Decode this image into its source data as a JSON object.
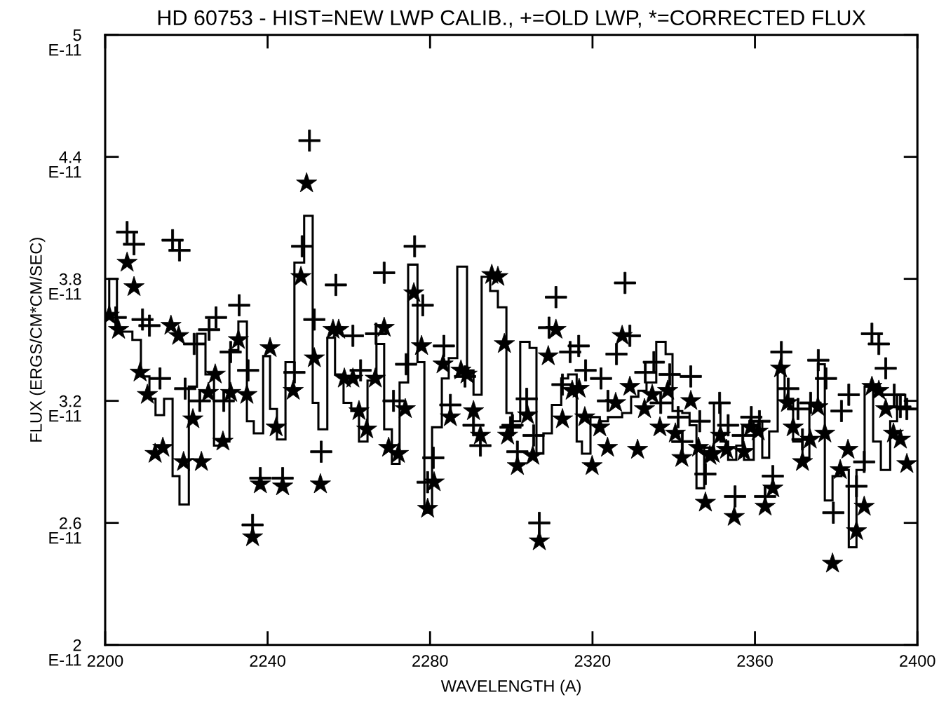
{
  "chart_data": {
    "type": "scatter",
    "title": "HD 60753 - HIST=NEW LWP CALIB., +=OLD LWP, *=CORRECTED FLUX",
    "xlabel": "WAVELENGTH (A)",
    "ylabel": "FLUX (ERGS/CM*CM/SEC)",
    "xlim": [
      2200,
      2400
    ],
    "xticks": [
      2200,
      2240,
      2280,
      2320,
      2360,
      2400
    ],
    "ylim": [
      2,
      5
    ],
    "yticks": [
      2,
      2.6,
      3.2,
      3.8,
      4.4,
      5
    ],
    "annotations": [
      "E-11",
      "E-11",
      "E-11",
      "E-11",
      "E-11",
      "E-11"
    ],
    "grid": false,
    "legend": false,
    "series": [
      {
        "type": "histogram",
        "color": "#000000",
        "bins": [
          2200.0,
          2201.0,
          2202.9,
          2206.7,
          2208.8,
          2210.9,
          2212.4,
          2214.5,
          2216.6,
          2218.3,
          2220.6,
          2222.6,
          2224.7,
          2226.8,
          2229.0,
          2230.6,
          2232.8,
          2234.9,
          2236.6,
          2238.9,
          2240.6,
          2242.3,
          2244.4,
          2246.6,
          2249.0,
          2251.1,
          2252.5,
          2254.7,
          2256.6,
          2258.7,
          2260.6,
          2262.5,
          2264.6,
          2266.8,
          2268.7,
          2270.6,
          2272.5,
          2274.6,
          2276.9,
          2278.6,
          2280.5,
          2282.9,
          2284.6,
          2286.7,
          2289.1,
          2290.7,
          2292.7,
          2294.8,
          2296.7,
          2298.8,
          2300.2,
          2302.2,
          2304.5,
          2306.2,
          2307.9,
          2310.0,
          2312.3,
          2314.0,
          2316.1,
          2317.4,
          2319.5,
          2321.8,
          2323.8,
          2327.3,
          2329.5,
          2331.3,
          2333.3,
          2335.7,
          2338.0,
          2339.7,
          2342.1,
          2343.9,
          2345.6,
          2347.5,
          2349.9,
          2351.5,
          2353.4,
          2355.4,
          2357.3,
          2359.7,
          2361.8,
          2363.5,
          2365.6,
          2367.3,
          2369.4,
          2371.7,
          2373.4,
          2375.5,
          2377.2,
          2379.1,
          2381.3,
          2383.1,
          2385.0,
          2387.0,
          2389.1,
          2391.0,
          2393.3,
          2395.0,
          2397.0,
          2399.1
        ],
        "values": [
          3.62,
          3.8,
          3.54,
          3.5,
          3.32,
          3.21,
          3.13,
          3.21,
          2.83,
          2.69,
          3.27,
          3.53,
          3.33,
          2.98,
          3.0,
          3.45,
          3.59,
          3.1,
          3.04,
          3.42,
          3.16,
          3.01,
          3.39,
          3.88,
          4.11,
          3.19,
          3.06,
          3.51,
          3.33,
          3.19,
          3.15,
          3.0,
          3.3,
          3.48,
          3.06,
          2.89,
          3.29,
          3.87,
          3.39,
          2.65,
          3.07,
          3.31,
          3.41,
          3.86,
          3.35,
          3.23,
          3.81,
          3.74,
          3.66,
          3.14,
          3.1,
          3.49,
          3.46,
          2.94,
          3.04,
          3.18,
          3.31,
          3.33,
          3.0,
          2.94,
          3.12,
          3.1,
          3.12,
          3.14,
          3.22,
          3.25,
          3.29,
          3.49,
          3.43,
          3.15,
          3.14,
          3.08,
          2.77,
          2.97,
          3.19,
          3.0,
          2.91,
          2.98,
          2.91,
          3.1,
          2.92,
          3.05,
          3.36,
          3.21,
          3.0,
          2.92,
          3.19,
          3.38,
          2.71,
          2.83,
          2.86,
          2.48,
          2.86,
          3.27,
          3.0,
          2.86,
          3.1,
          3.23,
          3.16
        ]
      },
      {
        "marker": "cross",
        "color": "#000000",
        "x": [
          2202.6,
          2205.4,
          2207.1,
          2209.2,
          2210.9,
          2213.5,
          2216.6,
          2218.3,
          2219.7,
          2221.9,
          2223.3,
          2225.6,
          2227.3,
          2229.2,
          2230.9,
          2233.0,
          2235.2,
          2236.3,
          2238.2,
          2243.7,
          2246.6,
          2248.5,
          2250.3,
          2251.5,
          2253.2,
          2256.8,
          2261.0,
          2262.9,
          2266.7,
          2268.7,
          2271.0,
          2274.1,
          2276.2,
          2278.2,
          2279.4,
          2280.8,
          2283.4,
          2285.0,
          2288.6,
          2290.7,
          2292.4,
          2299.8,
          2300.3,
          2301.5,
          2303.8,
          2305.5,
          2306.9,
          2309.3,
          2311.0,
          2312.6,
          2314.5,
          2316.6,
          2318.3,
          2322.1,
          2323.8,
          2325.9,
          2328.0,
          2329.2,
          2333.0,
          2335.1,
          2336.8,
          2339.0,
          2341.1,
          2342.1,
          2344.2,
          2346.4,
          2347.8,
          2351.3,
          2353.4,
          2355.1,
          2357.0,
          2359.1,
          2361.1,
          2362.5,
          2364.4,
          2366.5,
          2368.2,
          2370.6,
          2371.7,
          2373.7,
          2375.6,
          2377.5,
          2379.3,
          2381.3,
          2383.1,
          2385.0,
          2386.9,
          2388.8,
          2390.5,
          2392.2,
          2394.3,
          2395.8,
          2397.4
        ],
        "values": [
          3.61,
          4.03,
          3.97,
          3.6,
          3.57,
          3.31,
          3.99,
          3.94,
          3.26,
          3.48,
          3.2,
          3.55,
          3.61,
          3.2,
          3.44,
          3.67,
          3.35,
          2.59,
          2.82,
          2.82,
          3.34,
          3.96,
          4.48,
          3.6,
          2.95,
          3.77,
          3.52,
          3.35,
          3.53,
          3.83,
          3.2,
          3.38,
          3.96,
          3.67,
          2.8,
          2.92,
          3.47,
          3.18,
          3.32,
          3.08,
          2.98,
          3.07,
          3.08,
          2.95,
          3.21,
          3.03,
          2.6,
          3.56,
          3.71,
          3.28,
          3.44,
          3.47,
          3.35,
          3.31,
          3.2,
          3.43,
          3.78,
          3.52,
          3.34,
          3.39,
          3.19,
          3.33,
          3.12,
          3.0,
          3.32,
          3.1,
          2.84,
          3.19,
          3.08,
          2.73,
          3.03,
          3.12,
          3.1,
          2.73,
          2.83,
          3.44,
          3.26,
          3.16,
          3.01,
          3.19,
          3.4,
          3.31,
          2.65,
          3.15,
          3.23,
          2.78,
          2.9,
          3.53,
          3.48,
          3.36,
          3.23,
          3.17,
          3.16
        ]
      },
      {
        "marker": "star",
        "color": "#000000",
        "x": [
          2201.0,
          2203.3,
          2205.4,
          2207.1,
          2208.6,
          2210.4,
          2212.3,
          2214.2,
          2216.2,
          2218.1,
          2219.3,
          2221.6,
          2223.7,
          2225.4,
          2227.1,
          2229.0,
          2230.9,
          2232.8,
          2234.9,
          2236.3,
          2238.2,
          2240.6,
          2242.1,
          2243.7,
          2246.3,
          2248.2,
          2249.6,
          2251.5,
          2253.0,
          2256.1,
          2257.5,
          2258.9,
          2261.0,
          2262.5,
          2264.4,
          2266.5,
          2268.7,
          2269.8,
          2272.2,
          2273.9,
          2276.0,
          2277.9,
          2279.4,
          2281.0,
          2283.2,
          2285.0,
          2287.6,
          2289.1,
          2290.7,
          2292.4,
          2295.2,
          2296.7,
          2298.3,
          2299.1,
          2301.5,
          2304.0,
          2305.3,
          2306.9,
          2309.1,
          2311.0,
          2312.6,
          2315.0,
          2316.7,
          2318.1,
          2319.9,
          2321.8,
          2323.7,
          2325.7,
          2327.3,
          2329.2,
          2331.1,
          2332.8,
          2334.7,
          2336.6,
          2338.5,
          2340.4,
          2342.0,
          2344.2,
          2346.1,
          2347.8,
          2348.9,
          2349.7,
          2351.5,
          2353.0,
          2354.9,
          2357.3,
          2358.9,
          2360.8,
          2362.5,
          2364.4,
          2366.3,
          2368.0,
          2369.4,
          2371.7,
          2373.6,
          2375.5,
          2377.2,
          2379.1,
          2381.0,
          2382.9,
          2385.0,
          2386.9,
          2388.8,
          2390.5,
          2392.2,
          2394.1,
          2395.8,
          2397.4
        ],
        "values": [
          3.62,
          3.55,
          3.88,
          3.76,
          3.34,
          3.23,
          2.94,
          2.97,
          3.57,
          3.52,
          2.9,
          3.11,
          2.9,
          3.24,
          3.33,
          3.0,
          3.24,
          3.5,
          3.23,
          2.53,
          2.79,
          3.46,
          3.07,
          2.78,
          3.25,
          3.81,
          4.27,
          3.41,
          2.79,
          3.55,
          3.55,
          3.31,
          3.31,
          3.15,
          3.06,
          3.31,
          3.56,
          2.97,
          2.94,
          3.16,
          3.73,
          3.47,
          2.67,
          2.8,
          3.38,
          3.12,
          3.35,
          3.33,
          3.15,
          3.03,
          3.82,
          3.81,
          3.48,
          3.03,
          2.88,
          3.13,
          2.93,
          2.51,
          3.42,
          3.55,
          3.11,
          3.25,
          3.26,
          3.12,
          2.88,
          3.07,
          2.97,
          3.19,
          3.52,
          3.27,
          2.96,
          3.16,
          3.23,
          3.07,
          3.25,
          3.04,
          2.92,
          3.2,
          2.97,
          2.7,
          2.93,
          2.94,
          3.03,
          2.96,
          2.63,
          2.95,
          3.07,
          3.05,
          2.68,
          2.77,
          3.36,
          3.19,
          3.07,
          2.9,
          3.01,
          3.17,
          3.04,
          2.4,
          2.86,
          2.96,
          2.56,
          2.68,
          3.27,
          3.25,
          3.16,
          3.04,
          3.01,
          2.89
        ]
      }
    ]
  }
}
